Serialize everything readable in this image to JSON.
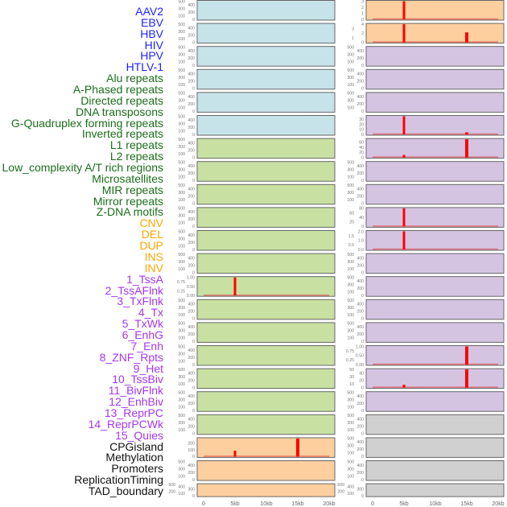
{
  "label_colors": {
    "virus": "#1f1fff",
    "repeat": "#1b6e1b",
    "sv": "#ffa500",
    "chromhmm": "#a636ef",
    "other": "#111111"
  },
  "labels": [
    {
      "text": "AAV2",
      "group": "virus"
    },
    {
      "text": "EBV",
      "group": "virus"
    },
    {
      "text": "HBV",
      "group": "virus"
    },
    {
      "text": "HIV",
      "group": "virus"
    },
    {
      "text": "HPV",
      "group": "virus"
    },
    {
      "text": "HTLV-1",
      "group": "virus"
    },
    {
      "text": "Alu repeats",
      "group": "repeat"
    },
    {
      "text": "A-Phased repeats",
      "group": "repeat"
    },
    {
      "text": "Directed repeats",
      "group": "repeat"
    },
    {
      "text": "DNA transposons",
      "group": "repeat"
    },
    {
      "text": "G-Quadruplex forming repeats",
      "group": "repeat"
    },
    {
      "text": "Inverted repeats",
      "group": "repeat"
    },
    {
      "text": "L1 repeats",
      "group": "repeat"
    },
    {
      "text": "L2 repeats",
      "group": "repeat"
    },
    {
      "text": "Low_complexity A/T rich regions",
      "group": "repeat"
    },
    {
      "text": "Microsatellites",
      "group": "repeat"
    },
    {
      "text": "MIR repeats",
      "group": "repeat"
    },
    {
      "text": "Mirror repeats",
      "group": "repeat"
    },
    {
      "text": "Z-DNA motifs",
      "group": "repeat"
    },
    {
      "text": "CNV",
      "group": "sv"
    },
    {
      "text": "DEL",
      "group": "sv"
    },
    {
      "text": "DUP",
      "group": "sv"
    },
    {
      "text": "INS",
      "group": "sv"
    },
    {
      "text": "INV",
      "group": "sv"
    },
    {
      "text": "1_TssA",
      "group": "chromhmm"
    },
    {
      "text": "2_TssAFlnk",
      "group": "chromhmm"
    },
    {
      "text": "3_TxFlnk",
      "group": "chromhmm"
    },
    {
      "text": "4_Tx",
      "group": "chromhmm"
    },
    {
      "text": "5_TxWk",
      "group": "chromhmm"
    },
    {
      "text": "6_EnhG",
      "group": "chromhmm"
    },
    {
      "text": "7_Enh",
      "group": "chromhmm"
    },
    {
      "text": "8_ZNF_Rpts",
      "group": "chromhmm"
    },
    {
      "text": "9_Het",
      "group": "chromhmm"
    },
    {
      "text": "10_TssBiv",
      "group": "chromhmm"
    },
    {
      "text": "11_BivFlnk",
      "group": "chromhmm"
    },
    {
      "text": "12_EnhBiv",
      "group": "chromhmm"
    },
    {
      "text": "13_ReprPC",
      "group": "chromhmm"
    },
    {
      "text": "14_ReprPCWk",
      "group": "chromhmm"
    },
    {
      "text": "15_Quies",
      "group": "chromhmm"
    },
    {
      "text": "CPGisland",
      "group": "other"
    },
    {
      "text": "Methylation",
      "group": "other"
    },
    {
      "text": "Promoters",
      "group": "other"
    },
    {
      "text": "ReplicationTiming",
      "group": "other"
    },
    {
      "text": "TAD_boundary",
      "group": "other"
    }
  ],
  "chart_data": {
    "type": "bar",
    "xlim": [
      0,
      20000
    ],
    "x_ticks": [
      "0",
      "5kb",
      "10kb",
      "15kb",
      "20kb"
    ],
    "x_tick_values": [
      0,
      5000,
      10000,
      15000,
      20000
    ],
    "bar_color": "#ff0000",
    "panel_colors": {
      "blue": "#c7e3ea",
      "green": "#c8e1a2",
      "orange": "#fdcf9f",
      "purple": "#d5c4e1",
      "gray": "#d0d0d0"
    },
    "columns": [
      {
        "panels": [
          {
            "color": "blue",
            "ticks": [
              "0",
              "100",
              "200",
              "300",
              "400",
              "500"
            ],
            "ymax": 500,
            "bars": []
          },
          {
            "color": "blue",
            "ticks": [
              "0",
              "100",
              "200",
              "300",
              "400",
              "500"
            ],
            "ymax": 500,
            "bars": []
          },
          {
            "color": "blue",
            "ticks": [
              "0",
              "100",
              "200",
              "300",
              "400",
              "500"
            ],
            "ymax": 500,
            "bars": []
          },
          {
            "color": "blue",
            "ticks": [
              "0",
              "100",
              "200",
              "300",
              "400",
              "500"
            ],
            "ymax": 500,
            "bars": []
          },
          {
            "color": "blue",
            "ticks": [
              "0",
              "100",
              "200",
              "300",
              "400",
              "500"
            ],
            "ymax": 500,
            "bars": []
          },
          {
            "color": "blue",
            "ticks": [
              "0",
              "100",
              "200",
              "300",
              "400",
              "500"
            ],
            "ymax": 500,
            "bars": []
          },
          {
            "color": "green",
            "ticks": [
              "0",
              "100",
              "200",
              "300",
              "400",
              "500"
            ],
            "ymax": 500,
            "bars": []
          },
          {
            "color": "green",
            "ticks": [
              "0",
              "100",
              "200",
              "300",
              "400",
              "500"
            ],
            "ymax": 500,
            "bars": []
          },
          {
            "color": "green",
            "ticks": [
              "0",
              "100",
              "200",
              "300",
              "400",
              "500"
            ],
            "ymax": 500,
            "bars": []
          },
          {
            "color": "green",
            "ticks": [
              "0",
              "100",
              "200",
              "300",
              "400",
              "500"
            ],
            "ymax": 500,
            "bars": []
          },
          {
            "color": "green",
            "ticks": [
              "0",
              "100",
              "200",
              "300",
              "400",
              "500"
            ],
            "ymax": 500,
            "bars": []
          },
          {
            "color": "green",
            "ticks": [
              "0",
              "100",
              "200",
              "300",
              "400",
              "500"
            ],
            "ymax": 500,
            "bars": []
          },
          {
            "color": "green",
            "ticks": [
              "0.00",
              "0.25",
              "0.50",
              "0.75",
              "1.00"
            ],
            "ymax": 1,
            "bars": [
              {
                "x": 5000,
                "value": 1
              }
            ]
          },
          {
            "color": "green",
            "ticks": [
              "0",
              "100",
              "200",
              "300",
              "400",
              "500"
            ],
            "ymax": 500,
            "bars": []
          },
          {
            "color": "green",
            "ticks": [
              "0",
              "100",
              "200",
              "300",
              "400",
              "500"
            ],
            "ymax": 500,
            "bars": []
          },
          {
            "color": "green",
            "ticks": [
              "0",
              "100",
              "200",
              "300",
              "400",
              "500"
            ],
            "ymax": 500,
            "bars": []
          },
          {
            "color": "green",
            "ticks": [
              "0",
              "100",
              "200",
              "300",
              "400",
              "500"
            ],
            "ymax": 500,
            "bars": []
          },
          {
            "color": "green",
            "ticks": [
              "0",
              "100",
              "200",
              "300",
              "400",
              "500"
            ],
            "ymax": 500,
            "bars": []
          },
          {
            "color": "green",
            "ticks": [
              "0",
              "100",
              "200",
              "300",
              "400",
              "500"
            ],
            "ymax": 500,
            "bars": []
          },
          {
            "color": "orange",
            "ticks": [
              "0",
              "100",
              "200"
            ],
            "ymax": 270,
            "bars": [
              {
                "x": 5000,
                "value": 90
              },
              {
                "x": 15000,
                "value": 270
              }
            ]
          },
          {
            "color": "orange",
            "ticks": [
              "0",
              "100",
              "200",
              "300",
              "400",
              "500"
            ],
            "ymax": 500,
            "bars": []
          },
          {
            "color": "orange",
            "ticks": [
              "0",
              "100",
              "200",
              "300",
              "400",
              "500"
            ],
            "ymax": 500,
            "bars": []
          }
        ]
      },
      {
        "panels": [
          {
            "color": "orange",
            "ticks": [
              "0",
              "1",
              "2",
              "3"
            ],
            "ymax": 3,
            "bars": [
              {
                "x": 5000,
                "value": 3
              }
            ]
          },
          {
            "color": "orange",
            "ticks": [
              "0",
              "1",
              "2",
              "3",
              "4"
            ],
            "ymax": 4,
            "bars": [
              {
                "x": 5000,
                "value": 4
              },
              {
                "x": 15000,
                "value": 2.2
              }
            ]
          },
          {
            "color": "purple",
            "ticks": [
              "0",
              "100",
              "200",
              "300",
              "400",
              "500"
            ],
            "ymax": 500,
            "bars": []
          },
          {
            "color": "purple",
            "ticks": [
              "0",
              "100",
              "200",
              "300",
              "400",
              "500"
            ],
            "ymax": 500,
            "bars": []
          },
          {
            "color": "purple",
            "ticks": [
              "0",
              "100",
              "200",
              "300",
              "400",
              "500"
            ],
            "ymax": 500,
            "bars": []
          },
          {
            "color": "purple",
            "ticks": [
              "0",
              "10",
              "20",
              "30"
            ],
            "ymax": 36,
            "bars": [
              {
                "x": 5000,
                "value": 36
              },
              {
                "x": 15000,
                "value": 4
              }
            ]
          },
          {
            "color": "purple",
            "ticks": [
              "0",
              "20",
              "40",
              "60"
            ],
            "ymax": 72,
            "bars": [
              {
                "x": 5000,
                "value": 10
              },
              {
                "x": 15000,
                "value": 72
              }
            ]
          },
          {
            "color": "purple",
            "ticks": [
              "0",
              "100",
              "200",
              "300",
              "400",
              "500"
            ],
            "ymax": 500,
            "bars": []
          },
          {
            "color": "purple",
            "ticks": [
              "0",
              "100",
              "200",
              "300",
              "400",
              "500"
            ],
            "ymax": 500,
            "bars": []
          },
          {
            "color": "purple",
            "ticks": [
              "0",
              "20",
              "40",
              "60",
              "80"
            ],
            "ymax": 80,
            "bars": [
              {
                "x": 5000,
                "value": 80
              }
            ]
          },
          {
            "color": "purple",
            "ticks": [
              "0.0",
              "0.5",
              "1.0",
              "1.5",
              "2.0"
            ],
            "ymax": 2,
            "bars": [
              {
                "x": 5000,
                "value": 2
              }
            ]
          },
          {
            "color": "purple",
            "ticks": [
              "0",
              "100",
              "200",
              "300",
              "400",
              "500"
            ],
            "ymax": 500,
            "bars": []
          },
          {
            "color": "purple",
            "ticks": [
              "0",
              "100",
              "200",
              "300",
              "400",
              "500"
            ],
            "ymax": 500,
            "bars": []
          },
          {
            "color": "purple",
            "ticks": [
              "0",
              "100",
              "200",
              "300",
              "400",
              "500"
            ],
            "ymax": 500,
            "bars": []
          },
          {
            "color": "purple",
            "ticks": [
              "0",
              "100",
              "200",
              "300",
              "400",
              "500"
            ],
            "ymax": 500,
            "bars": []
          },
          {
            "color": "purple",
            "ticks": [
              "0.00",
              "0.25",
              "0.50",
              "0.75",
              "1.00"
            ],
            "ymax": 1,
            "bars": [
              {
                "x": 15000,
                "value": 1
              }
            ]
          },
          {
            "color": "purple",
            "ticks": [
              "0",
              "10",
              "20",
              "30",
              "40",
              "50"
            ],
            "ymax": 50,
            "bars": [
              {
                "x": 5000,
                "value": 8
              },
              {
                "x": 15000,
                "value": 50
              }
            ]
          },
          {
            "color": "purple",
            "ticks": [
              "0",
              "100",
              "200",
              "300",
              "400",
              "500"
            ],
            "ymax": 500,
            "bars": []
          },
          {
            "color": "gray",
            "ticks": [
              "0",
              "100",
              "200",
              "300",
              "400",
              "500"
            ],
            "ymax": 500,
            "bars": []
          },
          {
            "color": "gray",
            "ticks": [
              "0",
              "100",
              "200",
              "300",
              "400",
              "500"
            ],
            "ymax": 500,
            "bars": []
          },
          {
            "color": "gray",
            "ticks": [
              "0",
              "100",
              "200",
              "300",
              "400",
              "500"
            ],
            "ymax": 500,
            "bars": []
          },
          {
            "color": "gray",
            "ticks": [
              "0",
              "100",
              "200",
              "300",
              "400",
              "500"
            ],
            "ymax": 500,
            "bars": []
          }
        ]
      }
    ]
  }
}
